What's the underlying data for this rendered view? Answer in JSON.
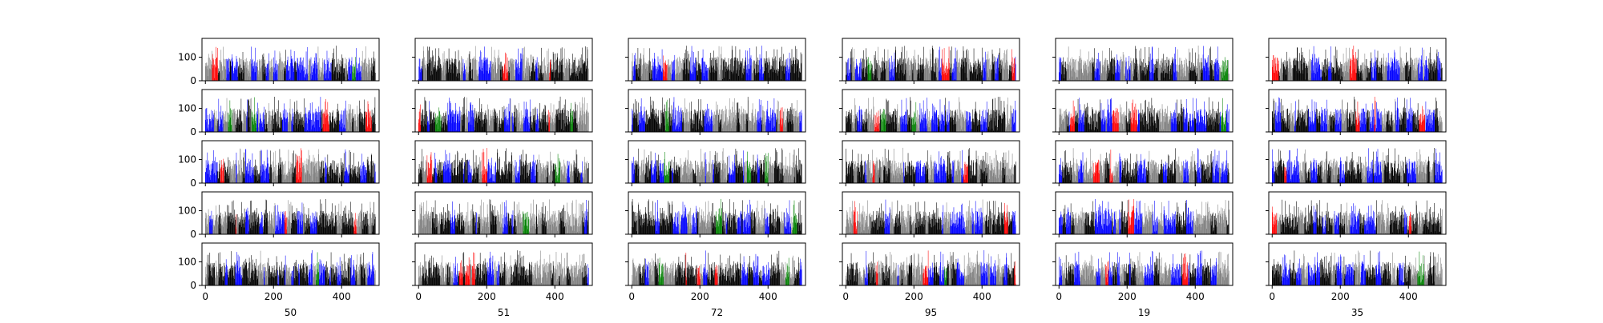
{
  "chart_data": {
    "type": "bar",
    "layout": "grid",
    "grid": {
      "rows": 5,
      "cols": 6
    },
    "shared_x": true,
    "shared_y": true,
    "xlim": [
      -10,
      510
    ],
    "ylim": [
      0,
      180
    ],
    "xticks": [
      0,
      200,
      400
    ],
    "xtick_labels": [
      "0",
      "200",
      "400"
    ],
    "yticks": [
      0,
      100
    ],
    "ytick_labels": [
      "0",
      "100"
    ],
    "column_xlabels": [
      "50",
      "51",
      "72",
      "95",
      "19",
      "35"
    ],
    "bars_per_panel": 500,
    "value_range": [
      5,
      150
    ],
    "typical_range": [
      30,
      100
    ],
    "bar_colors": [
      "#000000",
      "#808080",
      "#0000ff",
      "#ff0000",
      "#008000"
    ],
    "color_mix": {
      "#000000": 0.4,
      "#808080": 0.28,
      "#0000ff": 0.26,
      "#ff0000": 0.04,
      "#008000": 0.02
    }
  }
}
